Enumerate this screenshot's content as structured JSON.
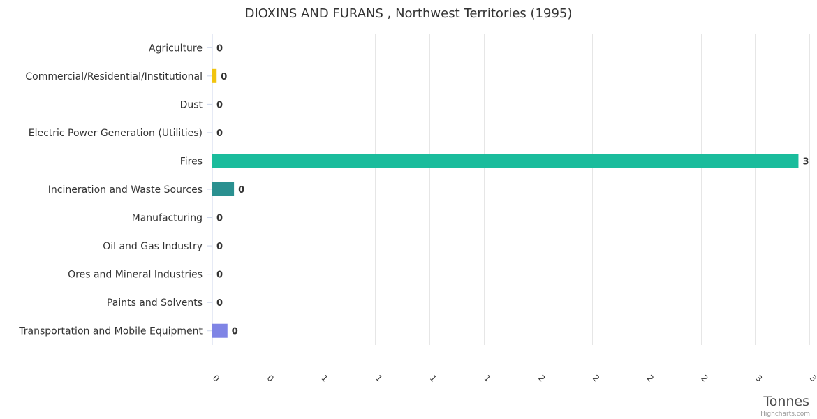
{
  "chart_data": {
    "type": "bar",
    "orientation": "horizontal",
    "title": "DIOXINS AND FURANS , Northwest Territories (1995)",
    "categories": [
      "Agriculture",
      "Commercial/Residential/Institutional",
      "Dust",
      "Electric Power Generation (Utilities)",
      "Fires",
      "Incineration and Waste Sources",
      "Manufacturing",
      "Oil and Gas Industry",
      "Ores and Mineral Industries",
      "Paints and Solvents",
      "Transportation and Mobile Equipment"
    ],
    "values": [
      0,
      0.02,
      0,
      0,
      2.7,
      0.1,
      0,
      0,
      0,
      0,
      0.07
    ],
    "data_labels": [
      "0",
      "0",
      "0",
      "0",
      "3",
      "0",
      "0",
      "0",
      "0",
      "0",
      "0"
    ],
    "colors": [
      "#f1c40f",
      "#f1c40f",
      "#f1c40f",
      "#f1c40f",
      "#1abc9c",
      "#2a9090",
      "#f1c40f",
      "#f1c40f",
      "#f1c40f",
      "#f1c40f",
      "#7f84e5"
    ],
    "xlabel": "Tonnes",
    "xlim": [
      0,
      2.75
    ],
    "x_ticks": [
      0,
      0.25,
      0.5,
      0.75,
      1,
      1.25,
      1.5,
      1.75,
      2,
      2.25,
      2.5,
      2.75
    ],
    "x_tick_labels": [
      "0",
      "0",
      "1",
      "1",
      "1",
      "1",
      "2",
      "2",
      "2",
      "2",
      "3",
      "3"
    ],
    "grid": true,
    "credits": "Highcharts.com"
  }
}
